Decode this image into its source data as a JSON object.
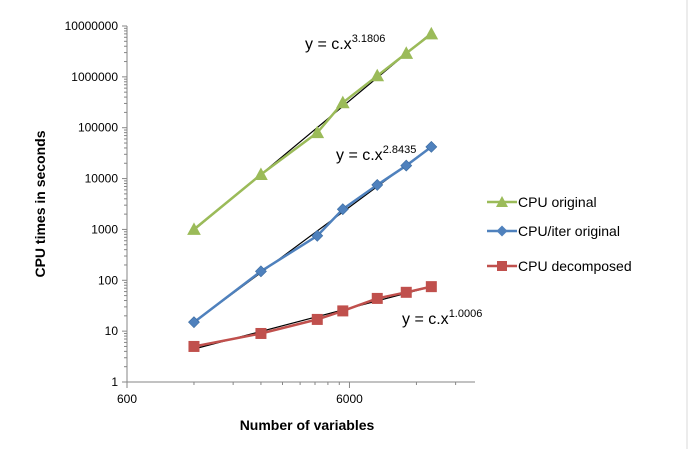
{
  "chart_data": {
    "type": "scatter",
    "title": "",
    "xlabel": "Number of variables",
    "ylabel": "CPU times in seconds",
    "x_scale": "log",
    "y_scale": "log",
    "xlim": [
      600,
      22000
    ],
    "ylim": [
      1,
      10000000
    ],
    "x_ticks": [
      {
        "value": 600,
        "label": "600"
      },
      {
        "value": 6000,
        "label": "6000"
      }
    ],
    "y_ticks": [
      {
        "value": 1,
        "label": "1"
      },
      {
        "value": 10,
        "label": "10"
      },
      {
        "value": 100,
        "label": "100"
      },
      {
        "value": 1000,
        "label": "1000"
      },
      {
        "value": 10000,
        "label": "10000"
      },
      {
        "value": 100000,
        "label": "100000"
      },
      {
        "value": 1000000,
        "label": "1000000"
      },
      {
        "value": 10000000,
        "label": "10000000"
      }
    ],
    "grid": false,
    "legend_position": "right",
    "series": [
      {
        "name": "CPU original",
        "color": "#9BBB59",
        "marker": "triangle",
        "x": [
          1200,
          2400,
          4300,
          5600,
          8000,
          10800,
          14000
        ],
        "y": [
          1000,
          12000,
          80000,
          310000,
          1050000,
          2900000,
          7000000
        ]
      },
      {
        "name": "CPU/iter original",
        "color": "#4F81BD",
        "marker": "diamond",
        "x": [
          1200,
          2400,
          4300,
          5600,
          8000,
          10800,
          14000
        ],
        "y": [
          15,
          150,
          750,
          2500,
          7500,
          18000,
          42000
        ]
      },
      {
        "name": "CPU decomposed",
        "color": "#C0504D",
        "marker": "square",
        "x": [
          1200,
          2400,
          4300,
          5600,
          8000,
          10800,
          14000
        ],
        "y": [
          5,
          9,
          17,
          25,
          44,
          58,
          75
        ]
      }
    ],
    "trendlines": [
      {
        "series": "CPU original",
        "color": "#000000",
        "exponent": "3.1806",
        "label_prefix": "y = c.x"
      },
      {
        "series": "CPU/iter original",
        "color": "#000000",
        "exponent": "2.8435",
        "label_prefix": "y = c.x"
      },
      {
        "series": "CPU decomposed",
        "color": "#000000",
        "exponent": "1.0006",
        "label_prefix": "y = c.x"
      }
    ]
  }
}
